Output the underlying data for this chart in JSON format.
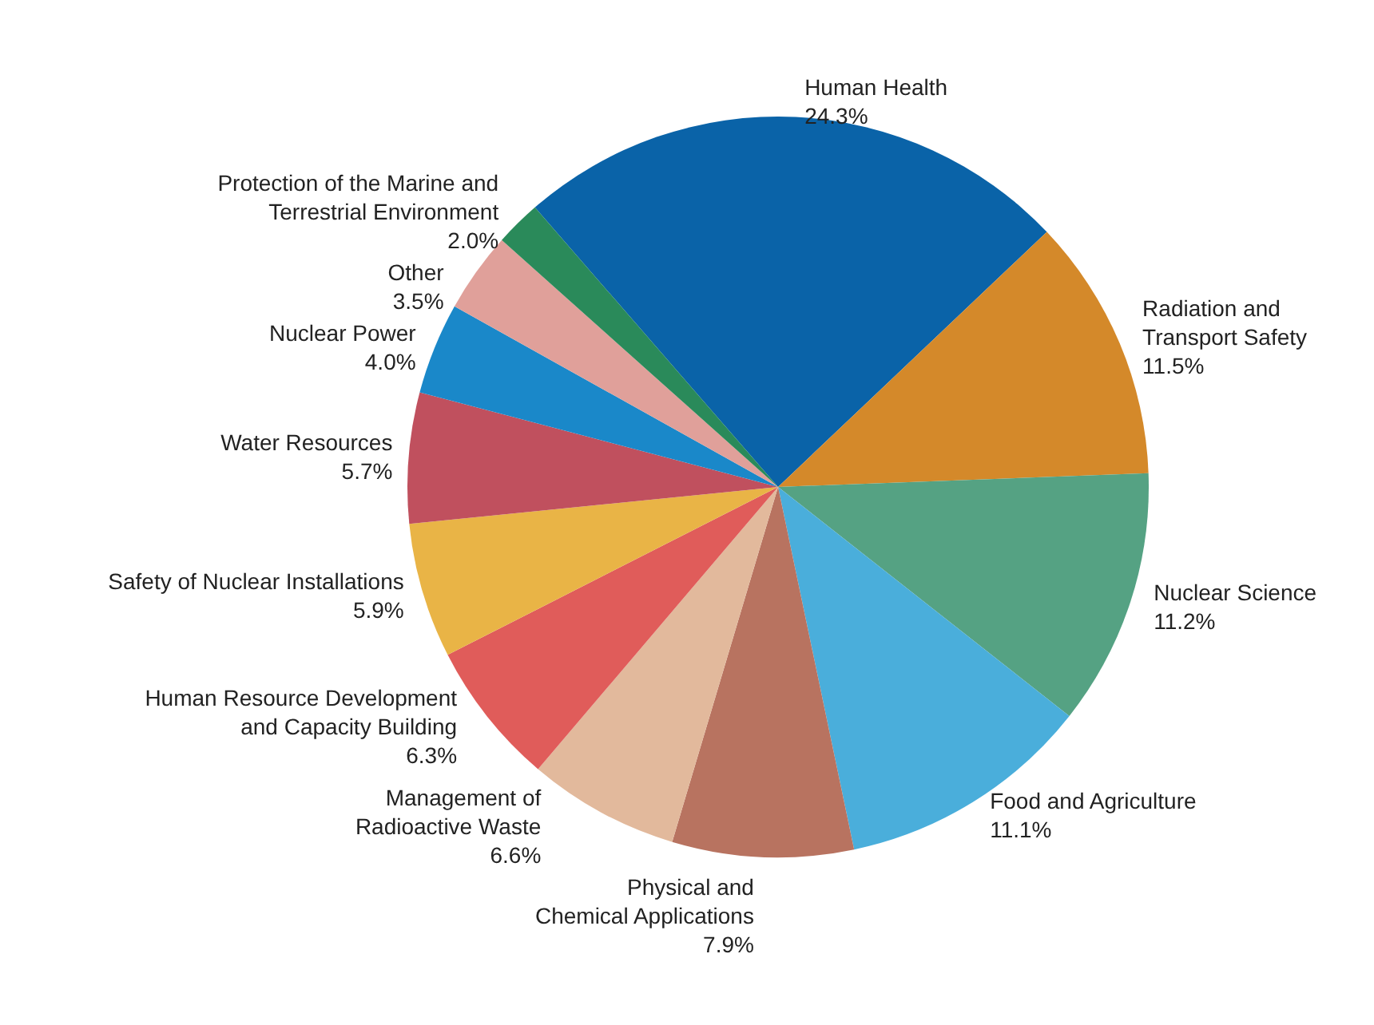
{
  "chart_data": {
    "type": "pie",
    "categories": [
      "Human Health",
      "Radiation and\nTransport Safety",
      "Nuclear Science",
      "Food and Agriculture",
      "Physical and\nChemical Applications",
      "Management of\nRadioactive Waste",
      "Human Resource Development\nand Capacity Building",
      "Safety of Nuclear Installations",
      "Water Resources",
      "Nuclear Power",
      "Other",
      "Protection of the Marine and\nTerrestrial Environment"
    ],
    "values": [
      24.3,
      11.5,
      11.2,
      11.1,
      7.9,
      6.6,
      6.3,
      5.9,
      5.7,
      4.0,
      3.5,
      2.0
    ],
    "value_labels": [
      "24.3%",
      "11.5%",
      "11.2%",
      "11.1%",
      "7.9%",
      "6.6%",
      "6.3%",
      "5.9%",
      "5.7%",
      "4.0%",
      "3.5%",
      "2.0%"
    ],
    "colors": [
      "#0a63a8",
      "#d4892a",
      "#55a283",
      "#4aaedb",
      "#b87360",
      "#e2b99c",
      "#e05c5a",
      "#e9b446",
      "#c0505e",
      "#1a88c9",
      "#e0a09a",
      "#2a8a5a"
    ]
  }
}
